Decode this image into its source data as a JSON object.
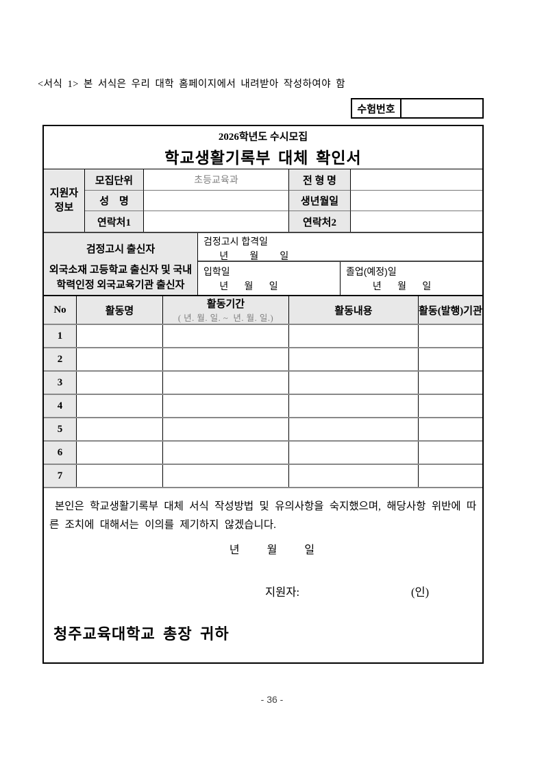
{
  "page": {
    "top_note": "<서식 1> 본 서식은 우리 대학 홈페이지에서 내려받아 작성하여야 함",
    "page_number": "- 36 -"
  },
  "exam_number": {
    "label": "수험번호",
    "value": ""
  },
  "form": {
    "title_small": "2026학년도 수시모집",
    "title_main": "학교생활기록부 대체 확인서",
    "applicant": {
      "group_line1": "지원자",
      "group_line2": "정보",
      "rows": [
        {
          "l1": "모집단위",
          "v1": "초등교육과",
          "l2": "전 형 명",
          "v2": ""
        },
        {
          "l1": "성    명",
          "v1": "",
          "l2": "생년월일",
          "v2": ""
        },
        {
          "l1": "연락처1",
          "v1": "",
          "l2": "연락처2",
          "v2": ""
        }
      ]
    },
    "ged": {
      "title": "검정고시 출신자",
      "field": "검정고시 합격일",
      "date": "      년        월        일"
    },
    "foreign": {
      "title_line1": "외국소재 고등학교 출신자 및 국내",
      "title_line2": "학력인정 외국교육기관 출신자",
      "admission_label": "입학일",
      "admission_date": "      년      월      일",
      "graduation_label": "졸업(예정)일",
      "graduation_date": "          년      월      일"
    },
    "activities": {
      "col_no": "No",
      "col_name": "활동명",
      "col_period": "활동기간",
      "col_period_sub": "( 년. 월. 일. ~  년. 월. 일.)",
      "col_content": "활동내용",
      "col_org": "활동(발행)기관",
      "row_numbers": [
        "1",
        "2",
        "3",
        "4",
        "5",
        "6",
        "7"
      ]
    },
    "declaration": {
      "text": "본인은 학교생활기록부 대체 서식 작성방법 및 유의사항을 숙지했으며, 해당사항 위반에 따른 조치에 대해서는 이의를 제기하지 않겠습니다.",
      "date": "년          월          일",
      "applicant_label": "지원자:",
      "seal": "(인)",
      "addressee": "청주교육대학교 총장 귀하"
    }
  }
}
